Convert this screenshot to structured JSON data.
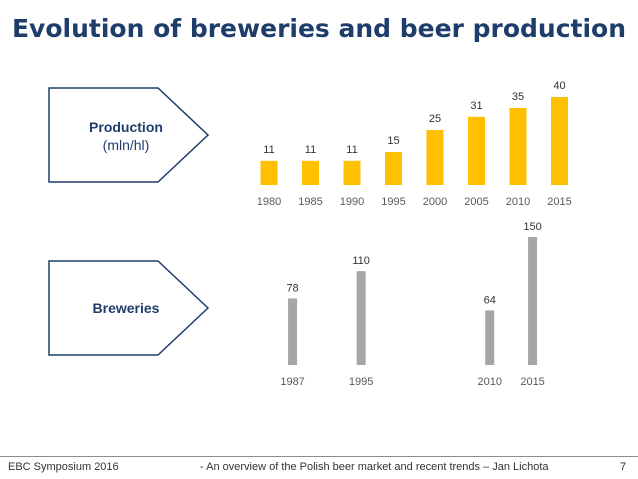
{
  "title": "Evolution of breweries and beer production",
  "labels": {
    "production_title": "Production",
    "production_unit": "(mln/hl)",
    "breweries_title": "Breweries"
  },
  "colors": {
    "production_bar": "#ffc000",
    "breweries_bar": "#a6a6a6",
    "title": "#1f3d6b",
    "label_border": "#1f3d6b"
  },
  "footer": {
    "left": "EBC Symposium 2016",
    "center": "- An overview of the Polish beer market and recent trends – Jan Lichota",
    "page": "7"
  },
  "chart_data": [
    {
      "type": "bar",
      "name": "production",
      "categories": [
        "1980",
        "1985",
        "1990",
        "1995",
        "2000",
        "2005",
        "2010",
        "2015"
      ],
      "values": [
        11,
        11,
        11,
        15,
        25,
        31,
        35,
        40
      ],
      "ylabel": "Production (mln/hl)",
      "ylim": [
        0,
        40
      ],
      "color": "#ffc000"
    },
    {
      "type": "bar",
      "name": "breweries",
      "categories": [
        "1987",
        "1995",
        "2010",
        "2015"
      ],
      "values": [
        78,
        110,
        64,
        150
      ],
      "ylabel": "Breweries",
      "ylim": [
        0,
        150
      ],
      "color": "#a6a6a6"
    }
  ]
}
